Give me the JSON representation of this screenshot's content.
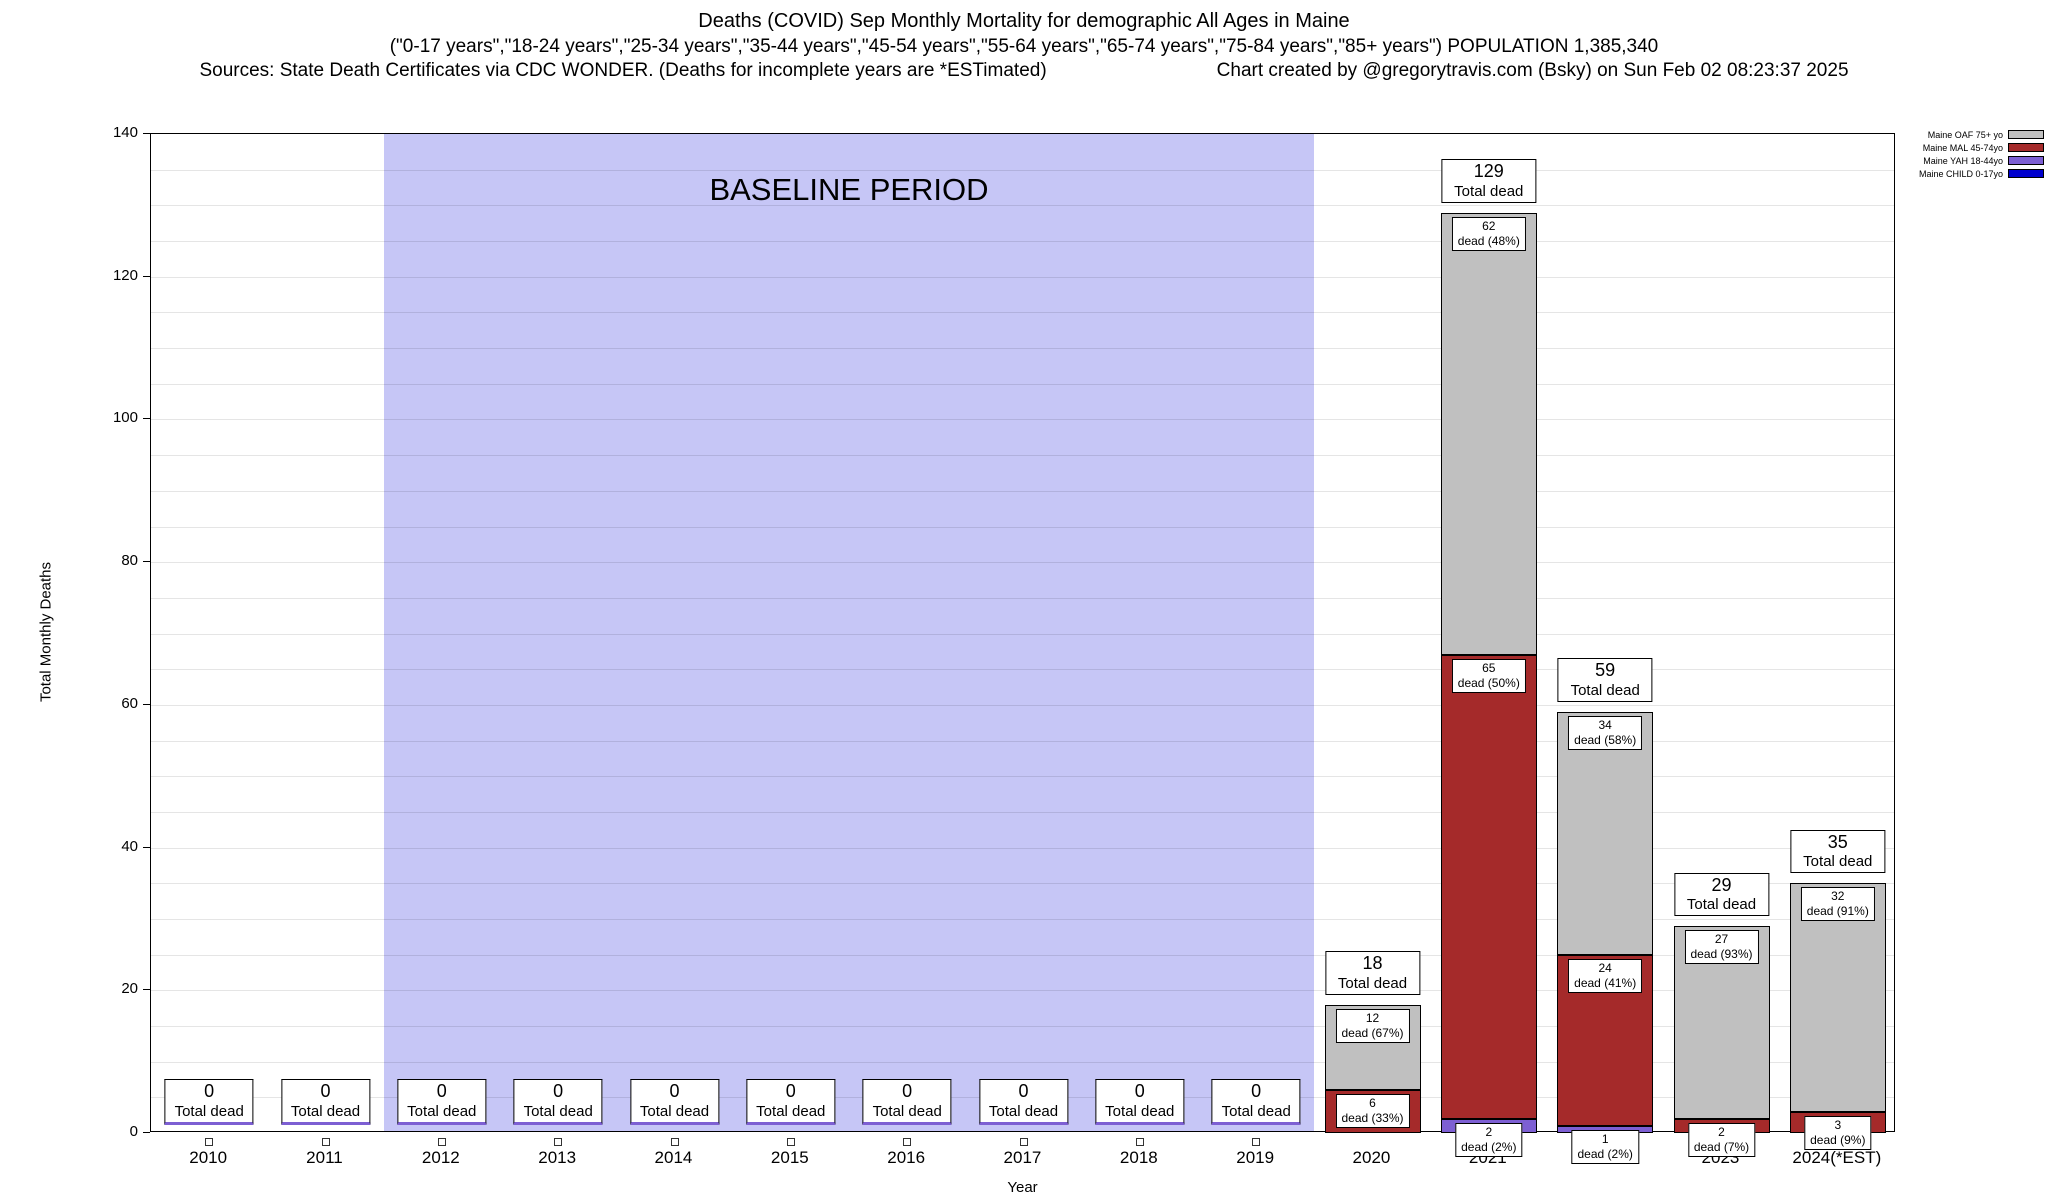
{
  "chart_data": {
    "type": "bar",
    "title": "Deaths (COVID) Sep Monthly Mortality for demographic All Ages in Maine",
    "subtitle": "(\"0-17 years\",\"18-24 years\",\"25-34 years\",\"35-44 years\",\"45-54 years\",\"55-64 years\",\"65-74 years\",\"75-84 years\",\"85+ years\") POPULATION 1,385,340",
    "sources": "Sources: State Death Certificates via CDC WONDER. (Deaths for incomplete years are *ESTimated)",
    "credit": "Chart created by @gregorytravis.com (Bsky) on Sun Feb 02 08:23:37 2025",
    "xlabel": "Year",
    "ylabel": "Total Monthly Deaths",
    "ylim": [
      0,
      140
    ],
    "ytick_step": 20,
    "grid_step": 5,
    "total_label_text": "Total dead",
    "baseline": {
      "label": "BASELINE PERIOD",
      "start_year": "2012",
      "end_year": "2019",
      "color": "#c6c6f6"
    },
    "categories": [
      "2010",
      "2011",
      "2012",
      "2013",
      "2014",
      "2015",
      "2016",
      "2017",
      "2018",
      "2019",
      "2020",
      "2021",
      "2022",
      "2023",
      "2024(*EST)"
    ],
    "series": [
      {
        "name": "Maine CHILD 0-17yo",
        "key": "child",
        "color": "#0000cd",
        "values": [
          0,
          0,
          0,
          0,
          0,
          0,
          0,
          0,
          0,
          0,
          0,
          0,
          0,
          0,
          0
        ]
      },
      {
        "name": "Maine YAH 18-44yo",
        "key": "yah",
        "color": "#7d5fd3",
        "values": [
          0,
          0,
          0,
          0,
          0,
          0,
          0,
          0,
          0,
          0,
          0,
          2,
          1,
          0,
          0
        ]
      },
      {
        "name": "Maine MAL 45-74yo",
        "key": "mal",
        "color": "#a52a2a",
        "values": [
          0,
          0,
          0,
          0,
          0,
          0,
          0,
          0,
          0,
          0,
          6,
          65,
          24,
          2,
          3
        ]
      },
      {
        "name": "Maine OAF 75+ yo",
        "key": "oaf",
        "color": "#c0c0c0",
        "values": [
          0,
          0,
          0,
          0,
          0,
          0,
          0,
          0,
          0,
          0,
          12,
          62,
          34,
          27,
          32
        ]
      }
    ],
    "totals": [
      0,
      0,
      0,
      0,
      0,
      0,
      0,
      0,
      0,
      0,
      18,
      129,
      59,
      29,
      35
    ],
    "segment_labels": [
      {
        "year_index": 10,
        "series": "mal",
        "lines": [
          "6",
          "dead (33%)"
        ]
      },
      {
        "year_index": 10,
        "series": "oaf",
        "lines": [
          "12",
          "dead (67%)"
        ]
      },
      {
        "year_index": 11,
        "series": "yah",
        "lines": [
          "2",
          "dead (2%)"
        ]
      },
      {
        "year_index": 11,
        "series": "mal",
        "lines": [
          "65",
          "dead (50%)"
        ]
      },
      {
        "year_index": 11,
        "series": "oaf",
        "lines": [
          "62",
          "dead (48%)"
        ]
      },
      {
        "year_index": 12,
        "series": "yah",
        "lines": [
          "1",
          "dead (2%)"
        ]
      },
      {
        "year_index": 12,
        "series": "mal",
        "lines": [
          "24",
          "dead (41%)"
        ]
      },
      {
        "year_index": 12,
        "series": "oaf",
        "lines": [
          "34",
          "dead (58%)"
        ]
      },
      {
        "year_index": 13,
        "series": "mal",
        "lines": [
          "2",
          "dead (7%)"
        ]
      },
      {
        "year_index": 13,
        "series": "oaf",
        "lines": [
          "27",
          "dead (93%)"
        ]
      },
      {
        "year_index": 14,
        "series": "mal",
        "lines": [
          "3",
          "dead (9%)"
        ]
      },
      {
        "year_index": 14,
        "series": "oaf",
        "lines": [
          "32",
          "dead (91%)"
        ]
      }
    ],
    "legend": [
      {
        "label": "Maine OAF 75+ yo",
        "color": "#c0c0c0"
      },
      {
        "label": "Maine MAL 45-74yo",
        "color": "#a52a2a"
      },
      {
        "label": "Maine YAH 18-44yo",
        "color": "#7d5fd3"
      },
      {
        "label": "Maine CHILD 0-17yo",
        "color": "#0000cd"
      }
    ]
  }
}
